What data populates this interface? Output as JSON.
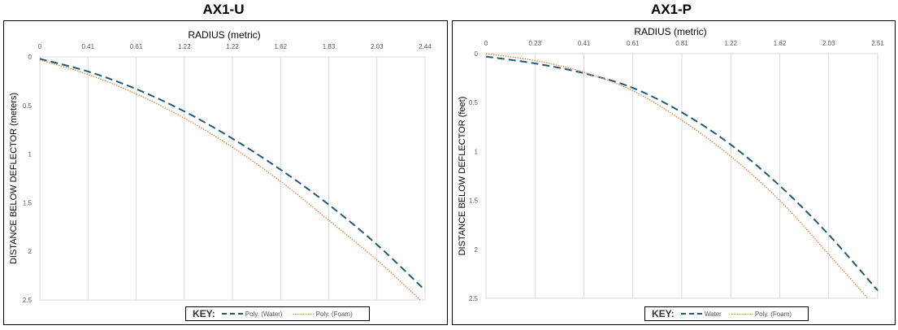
{
  "chart_data": [
    {
      "type": "line",
      "title": "AX1-U",
      "xlabel": "RADIUS (metric)",
      "ylabel": "DISTANCE BELOW DEFLECTOR (meters)",
      "x_tick_labels": [
        "0",
        "0.41",
        "0.61",
        "1.22",
        "1.22",
        "1.62",
        "1.83",
        "2.03",
        "2.44"
      ],
      "y_ticks": [
        0,
        0.5,
        1,
        1.5,
        2,
        2.5
      ],
      "ylim": [
        0,
        2.5
      ],
      "y_inverted": true,
      "grid": true,
      "legend_title": "KEY:",
      "legend_placement": "bottom",
      "series": [
        {
          "name": "Poly. (Water)",
          "color": "#1f5a7a",
          "style": "dashed",
          "points": [
            [
              0,
              0.02
            ],
            [
              1,
              0.15
            ],
            [
              2,
              0.33
            ],
            [
              3,
              0.56
            ],
            [
              4,
              0.84
            ],
            [
              5,
              1.16
            ],
            [
              6,
              1.52
            ],
            [
              7,
              1.93
            ],
            [
              8,
              2.4
            ]
          ]
        },
        {
          "name": "Poly. (Foam)",
          "color": "#ed7d31",
          "style": "dotted",
          "points": [
            [
              0,
              0.03
            ],
            [
              1,
              0.18
            ],
            [
              2,
              0.38
            ],
            [
              3,
              0.63
            ],
            [
              4,
              0.93
            ],
            [
              5,
              1.28
            ],
            [
              6,
              1.68
            ],
            [
              7,
              2.09
            ],
            [
              7.9,
              2.5
            ]
          ]
        }
      ]
    },
    {
      "type": "line",
      "title": "AX1-P",
      "xlabel": "RADIUS (metric)",
      "ylabel": "DISTANCE BELOW DEFLECTOR (feet)",
      "x_tick_labels": [
        "0",
        "0.23",
        "0.41",
        "0.61",
        "0.81",
        "1.22",
        "1.62",
        "2.03",
        "2.51"
      ],
      "y_ticks": [
        0,
        0.5,
        1,
        1.5,
        2,
        2.5
      ],
      "ylim": [
        0,
        2.5
      ],
      "y_inverted": true,
      "grid": true,
      "legend_title": "KEY:",
      "legend_placement": "bottom",
      "series": [
        {
          "name": "Water",
          "color": "#1f5a7a",
          "style": "dashed",
          "points": [
            [
              0,
              0.03
            ],
            [
              1,
              0.1
            ],
            [
              2,
              0.2
            ],
            [
              3,
              0.35
            ],
            [
              4,
              0.6
            ],
            [
              5,
              0.93
            ],
            [
              6,
              1.35
            ],
            [
              7,
              1.85
            ],
            [
              8,
              2.42
            ]
          ]
        },
        {
          "name": "Poly. (Foam)",
          "color": "#ed7d31",
          "style": "dotted",
          "points": [
            [
              0,
              0
            ],
            [
              1,
              0.07
            ],
            [
              2,
              0.19
            ],
            [
              3,
              0.38
            ],
            [
              4,
              0.68
            ],
            [
              5,
              1.05
            ],
            [
              6,
              1.5
            ],
            [
              7,
              2.05
            ],
            [
              7.8,
              2.5
            ]
          ]
        }
      ]
    }
  ]
}
